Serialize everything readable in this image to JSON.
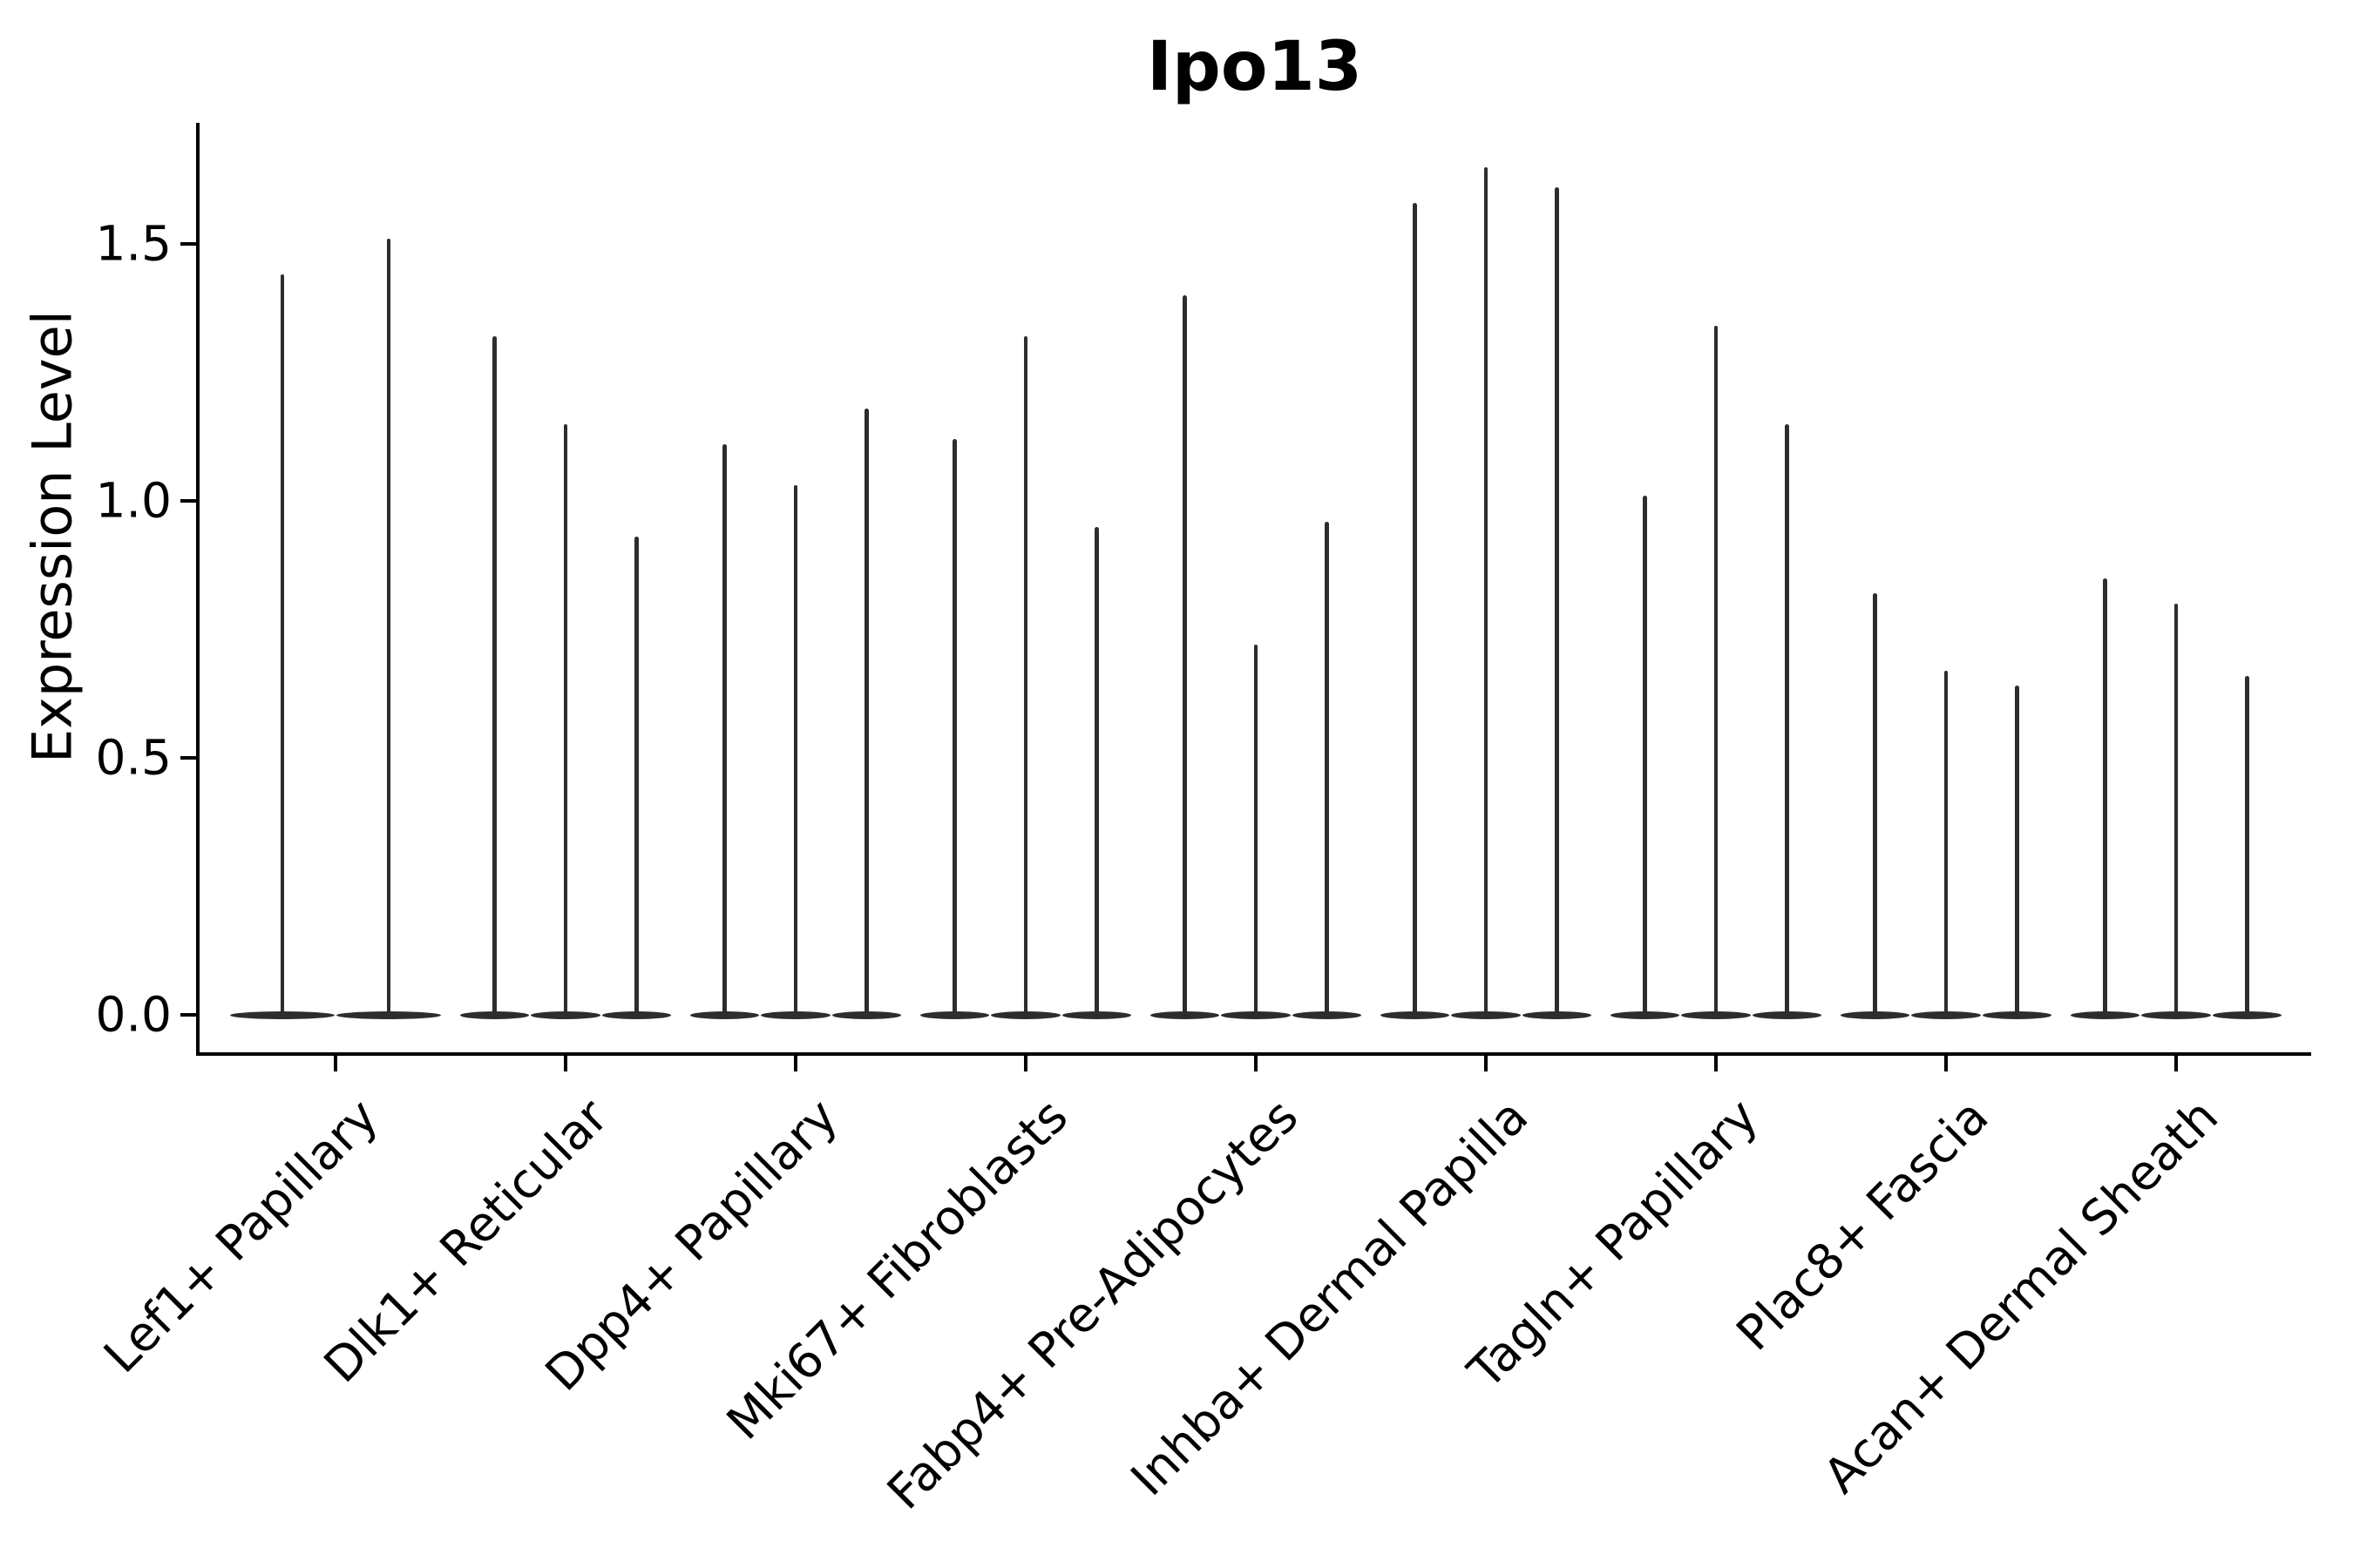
{
  "title": "Ipo13",
  "chart_data": {
    "type": "violin",
    "title": "Ipo13",
    "subtitle": "",
    "xlabel": "",
    "ylabel": "Expression Level",
    "ylim": [
      -0.08,
      1.74
    ],
    "yticks": [
      0.0,
      0.5,
      1.0,
      1.5
    ],
    "ytick_labels": [
      "0.0",
      "0.5",
      "1.0",
      "1.5"
    ],
    "grid": false,
    "legend": "none",
    "x_tick_rotation": 45,
    "style_note": "Seurat-style violin plot; violins are extremely narrow spikes rising from a flat base at 0 because most cells have zero expression",
    "categories": [
      "Lef1+ Papillary",
      "Dlk1+ Reticular",
      "Dpp4+ Papillary",
      "Mki67+ Fibroblasts",
      "Fabp4+ Pre-Adipocytes",
      "Inhba+ Dermal Papilla",
      "Tagln+ Papillary",
      "Plac8+ Fascia",
      "Acan+ Dermal Sheath"
    ],
    "groups": [
      {
        "category": "Lef1+ Papillary",
        "violin_max": [
          1.44,
          1.51
        ]
      },
      {
        "category": "Dlk1+ Reticular",
        "violin_max": [
          1.32,
          1.15,
          0.93
        ]
      },
      {
        "category": "Dpp4+ Papillary",
        "violin_max": [
          1.11,
          1.03,
          1.18
        ]
      },
      {
        "category": "Mki67+ Fibroblasts",
        "violin_max": [
          1.12,
          1.32,
          0.95
        ]
      },
      {
        "category": "Fabp4+ Pre-Adipocytes",
        "violin_max": [
          1.4,
          0.72,
          0.96
        ]
      },
      {
        "category": "Inhba+ Dermal Papilla",
        "violin_max": [
          1.58,
          1.65,
          1.61
        ]
      },
      {
        "category": "Tagln+ Papillary",
        "violin_max": [
          1.01,
          1.34,
          1.15
        ]
      },
      {
        "category": "Plac8+ Fascia",
        "violin_max": [
          0.82,
          0.67,
          0.64
        ]
      },
      {
        "category": "Acan+ Dermal Sheath",
        "violin_max": [
          0.85,
          0.8,
          0.66
        ]
      }
    ],
    "colors": {
      "violin": "#2d2d2d",
      "axis": "#000000",
      "text": "#000000",
      "background": "#ffffff"
    }
  }
}
